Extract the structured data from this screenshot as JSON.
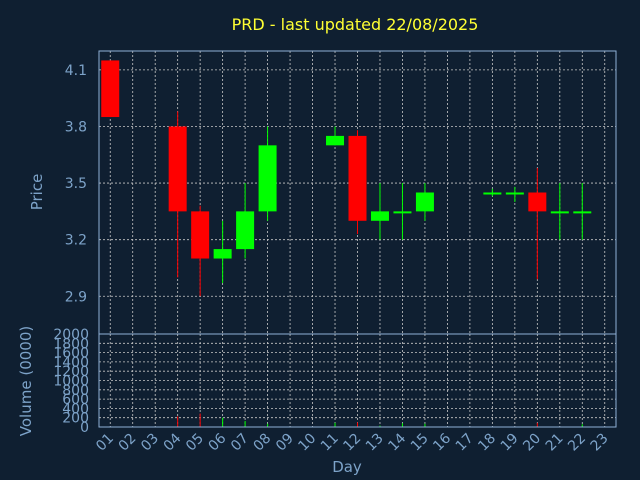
{
  "colors": {
    "background": "#0f1f31",
    "axis": "#8fb0d6",
    "text": "#7da3c9",
    "title": "#ffff33",
    "up": "#00ff00",
    "down": "#ff0000",
    "grid": "#c8c8c8"
  },
  "chart_data": {
    "type": "candlestick",
    "title": "PRD - last updated 22/08/2025",
    "xlabel": "Day",
    "ylabel": "Price",
    "volume_label": "Volume (0000)",
    "days": [
      "01",
      "02",
      "03",
      "04",
      "05",
      "06",
      "07",
      "08",
      "09",
      "10",
      "11",
      "12",
      "13",
      "14",
      "15",
      "16",
      "17",
      "18",
      "19",
      "20",
      "21",
      "22",
      "23"
    ],
    "price_ylim": [
      2.7,
      4.2
    ],
    "price_ticks": [
      "2.9",
      "3.2",
      "3.5",
      "3.8",
      "4.1"
    ],
    "volume_ylim": [
      0,
      2000
    ],
    "volume_ticks": [
      "0",
      "200",
      "400",
      "600",
      "800",
      "1000",
      "1200",
      "1400",
      "1600",
      "1800",
      "2000"
    ],
    "grid": true,
    "candles": [
      {
        "day": "01",
        "open": 4.15,
        "close": 3.85,
        "high": 4.15,
        "low": 3.85
      },
      {
        "day": "04",
        "open": 3.8,
        "close": 3.35,
        "high": 3.88,
        "low": 3.0
      },
      {
        "day": "05",
        "open": 3.35,
        "close": 3.1,
        "high": 3.38,
        "low": 2.9
      },
      {
        "day": "06",
        "open": 3.1,
        "close": 3.15,
        "high": 3.3,
        "low": 2.97
      },
      {
        "day": "07",
        "open": 3.15,
        "close": 3.35,
        "high": 3.5,
        "low": 3.1
      },
      {
        "day": "08",
        "open": 3.35,
        "close": 3.7,
        "high": 3.8,
        "low": 3.3
      },
      {
        "day": "11",
        "open": 3.7,
        "close": 3.75,
        "high": 3.8,
        "low": 3.7
      },
      {
        "day": "12",
        "open": 3.75,
        "close": 3.3,
        "high": 3.78,
        "low": 3.23
      },
      {
        "day": "13",
        "open": 3.3,
        "close": 3.35,
        "high": 3.5,
        "low": 3.2
      },
      {
        "day": "14",
        "open": 3.34,
        "close": 3.35,
        "high": 3.5,
        "low": 3.2
      },
      {
        "day": "15",
        "open": 3.35,
        "close": 3.45,
        "high": 3.5,
        "low": 3.3
      },
      {
        "day": "18",
        "open": 3.44,
        "close": 3.45,
        "high": 3.47,
        "low": 3.43
      },
      {
        "day": "19",
        "open": 3.44,
        "close": 3.45,
        "high": 3.48,
        "low": 3.4
      },
      {
        "day": "20",
        "open": 3.45,
        "close": 3.35,
        "high": 3.58,
        "low": 2.99
      },
      {
        "day": "21",
        "open": 3.34,
        "close": 3.35,
        "high": 3.5,
        "low": 3.2
      },
      {
        "day": "22",
        "open": 3.34,
        "close": 3.35,
        "high": 3.5,
        "low": 3.2
      }
    ],
    "volume": [
      {
        "day": "01",
        "value": 5,
        "direction": "down"
      },
      {
        "day": "04",
        "value": 230,
        "direction": "down"
      },
      {
        "day": "05",
        "value": 290,
        "direction": "down"
      },
      {
        "day": "06",
        "value": 200,
        "direction": "up"
      },
      {
        "day": "07",
        "value": 130,
        "direction": "up"
      },
      {
        "day": "08",
        "value": 70,
        "direction": "up"
      },
      {
        "day": "11",
        "value": 90,
        "direction": "up"
      },
      {
        "day": "12",
        "value": 100,
        "direction": "down"
      },
      {
        "day": "13",
        "value": 30,
        "direction": "up"
      },
      {
        "day": "14",
        "value": 80,
        "direction": "up"
      },
      {
        "day": "15",
        "value": 70,
        "direction": "up"
      },
      {
        "day": "18",
        "value": 5,
        "direction": "up"
      },
      {
        "day": "19",
        "value": 5,
        "direction": "up"
      },
      {
        "day": "20",
        "value": 90,
        "direction": "down"
      },
      {
        "day": "21",
        "value": 10,
        "direction": "up"
      },
      {
        "day": "22",
        "value": 60,
        "direction": "up"
      }
    ]
  }
}
